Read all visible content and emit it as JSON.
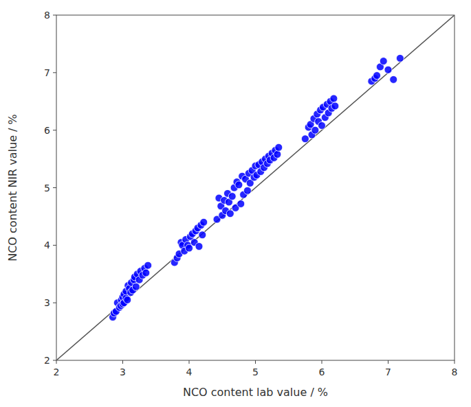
{
  "chart_data": {
    "type": "scatter",
    "xlabel": "NCO content lab value / %",
    "ylabel": "NCO content NIR value / %",
    "color": "#0000FF",
    "x": [
      2.85,
      2.87,
      2.9,
      2.92,
      2.95,
      2.97,
      2.98,
      3.0,
      3.0,
      3.02,
      3.02,
      3.05,
      3.05,
      3.07,
      3.08,
      3.1,
      3.12,
      3.13,
      3.15,
      3.17,
      3.18,
      3.2,
      3.22,
      3.25,
      3.27,
      3.3,
      3.33,
      3.35,
      3.38,
      3.78,
      3.82,
      3.85,
      3.88,
      3.9,
      3.93,
      3.95,
      3.98,
      4.0,
      4.02,
      4.05,
      4.08,
      4.1,
      4.13,
      4.15,
      4.18,
      4.2,
      4.22,
      4.42,
      4.45,
      4.48,
      4.5,
      4.53,
      4.55,
      4.58,
      4.6,
      4.62,
      4.65,
      4.68,
      4.7,
      4.72,
      4.75,
      4.78,
      4.8,
      4.82,
      4.85,
      4.88,
      4.9,
      4.92,
      4.95,
      4.98,
      5.0,
      5.02,
      5.05,
      5.08,
      5.1,
      5.13,
      5.15,
      5.18,
      5.2,
      5.22,
      5.25,
      5.28,
      5.3,
      5.33,
      5.35,
      5.75,
      5.8,
      5.83,
      5.85,
      5.88,
      5.9,
      5.93,
      5.95,
      5.98,
      6.0,
      6.02,
      6.05,
      6.08,
      6.1,
      6.13,
      6.15,
      6.18,
      6.2,
      6.75,
      6.8,
      6.83,
      6.88,
      6.93,
      7.0,
      7.08,
      7.18
    ],
    "values": [
      2.75,
      2.82,
      2.85,
      3.0,
      2.92,
      2.95,
      3.05,
      3.1,
      2.98,
      3.0,
      3.15,
      3.08,
      3.2,
      3.05,
      3.3,
      3.25,
      3.18,
      3.35,
      3.22,
      3.4,
      3.45,
      3.28,
      3.5,
      3.4,
      3.55,
      3.48,
      3.6,
      3.52,
      3.65,
      3.7,
      3.78,
      3.85,
      4.05,
      4.0,
      3.9,
      4.1,
      4.0,
      3.95,
      4.15,
      4.2,
      4.05,
      4.25,
      4.3,
      3.98,
      4.35,
      4.18,
      4.4,
      4.45,
      4.82,
      4.68,
      4.52,
      4.78,
      4.6,
      4.9,
      4.75,
      4.55,
      4.85,
      5.0,
      4.65,
      5.1,
      5.05,
      4.72,
      5.2,
      4.88,
      5.15,
      4.95,
      5.25,
      5.08,
      5.3,
      5.18,
      5.38,
      5.22,
      5.4,
      5.28,
      5.45,
      5.35,
      5.5,
      5.42,
      5.55,
      5.48,
      5.6,
      5.52,
      5.65,
      5.58,
      5.7,
      5.85,
      6.05,
      6.1,
      5.92,
      6.2,
      6.0,
      6.28,
      6.15,
      6.35,
      6.08,
      6.4,
      6.22,
      6.45,
      6.3,
      6.5,
      6.38,
      6.55,
      6.42,
      6.85,
      6.9,
      6.95,
      7.1,
      7.2,
      7.05,
      6.88,
      7.25
    ],
    "xlim": [
      2,
      8
    ],
    "ylim": [
      2,
      8
    ],
    "xticks": [
      2,
      3,
      4,
      5,
      6,
      7,
      8
    ],
    "yticks": [
      2,
      3,
      4,
      5,
      6,
      7,
      8
    ]
  }
}
